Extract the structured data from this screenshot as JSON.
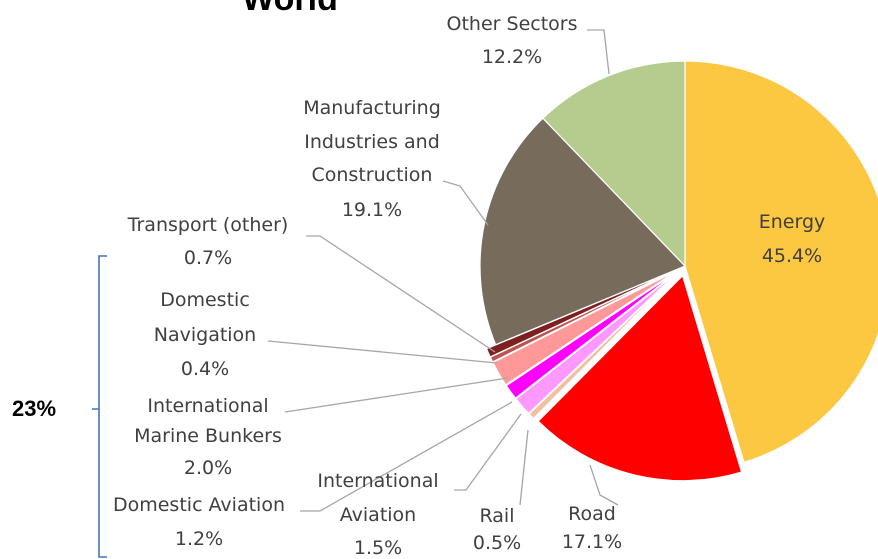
{
  "chart_data": {
    "type": "pie",
    "title": "World",
    "unit": "%",
    "slices": [
      {
        "name": "Energy",
        "value": 45.4,
        "value_label": "45.4%",
        "color": "#fcc741",
        "explode": false
      },
      {
        "name": "Road",
        "value": 17.1,
        "value_label": "17.1%",
        "color": "#ff0000",
        "explode": true
      },
      {
        "name": "Rail",
        "value": 0.5,
        "value_label": "0.5%",
        "color": "#f0c0a0",
        "explode": true
      },
      {
        "name": "International Aviation",
        "value": 1.5,
        "value_label": "1.5%",
        "color": "#ff99ff",
        "explode": true
      },
      {
        "name": "Domestic Aviation",
        "value": 1.2,
        "value_label": "1.2%",
        "color": "#ff00ff",
        "explode": true
      },
      {
        "name": "International Marine Bunkers",
        "value": 2.0,
        "value_label": "2.0%",
        "color": "#ff9999",
        "explode": true
      },
      {
        "name": "Domestic Navigation",
        "value": 0.4,
        "value_label": "0.4%",
        "color": "#c0504d",
        "explode": true
      },
      {
        "name": "Transport (other)",
        "value": 0.7,
        "value_label": "0.7%",
        "color": "#7f2020",
        "explode": true
      },
      {
        "name": "Manufacturing Industries and Construction",
        "value": 19.1,
        "value_label": "19.1%",
        "color": "#776b5c",
        "explode": false
      },
      {
        "name": "Other Sectors",
        "value": 12.2,
        "value_label": "12.2%",
        "color": "#b5cc8e",
        "explode": false
      }
    ],
    "bracket": {
      "label": "23%",
      "color": "#4472c4"
    }
  }
}
